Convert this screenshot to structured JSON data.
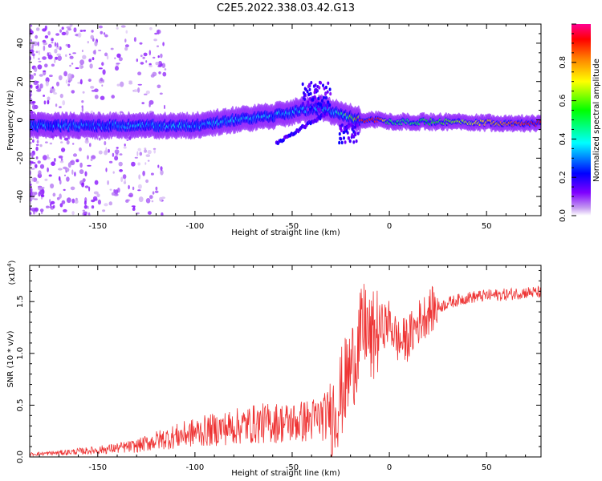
{
  "figure": {
    "title": "C2E5.2022.338.03.42.G13"
  },
  "chart_data": [
    {
      "type": "heatmap",
      "title": "C2E5.2022.338.03.42.G13",
      "xlabel": "Height of straight line (km)",
      "ylabel": "Frequency (Hz)",
      "xlim": [
        -185,
        78
      ],
      "ylim": [
        -50,
        50
      ],
      "xticks": [
        -150,
        -100,
        -50,
        0,
        50
      ],
      "yticks": [
        -40,
        -20,
        0,
        20,
        40
      ],
      "colorbar": {
        "label": "Normalized spectral amplitude",
        "range": [
          0,
          1
        ],
        "ticks": [
          0.0,
          0.2,
          0.4,
          0.6,
          0.8
        ],
        "colormap": [
          "#ffffff",
          "#8000ff",
          "#0000ff",
          "#00ffff",
          "#00ff00",
          "#ffff00",
          "#ff8000",
          "#ff0000",
          "#ff0080"
        ]
      },
      "ridge": {
        "description_points_x": [
          -185,
          -150,
          -120,
          -100,
          -80,
          -60,
          -45,
          -35,
          -25,
          -15,
          -5,
          0,
          10,
          30,
          78
        ],
        "center_freq": [
          -3,
          -3,
          -3,
          -3,
          0,
          2,
          5,
          6,
          3,
          0,
          0,
          -1,
          -1,
          -1,
          -2
        ],
        "peak_amplitude": [
          0.3,
          0.3,
          0.35,
          0.35,
          0.35,
          0.35,
          0.35,
          0.35,
          0.4,
          0.9,
          0.9,
          0.5,
          0.5,
          0.6,
          0.95
        ]
      }
    },
    {
      "type": "line",
      "xlabel": "Height of straight line (km)",
      "ylabel": "SNR (10 * v/v)",
      "y_multiplier": "(x10",
      "y_multiplier_exp": "4",
      "xlim": [
        -185,
        78
      ],
      "ylim": [
        0,
        1.85
      ],
      "xticks": [
        -150,
        -100,
        -50,
        0,
        50
      ],
      "yticks": [
        0.0,
        0.5,
        1.0,
        1.5
      ],
      "series": [
        {
          "color": "#ee3333",
          "x": [
            -185,
            -170,
            -150,
            -130,
            -120,
            -110,
            -100,
            -90,
            -80,
            -70,
            -60,
            -50,
            -40,
            -32,
            -28,
            -25,
            -22,
            -18,
            -15,
            -12,
            -10,
            -5,
            0,
            5,
            10,
            15,
            20,
            25,
            30,
            40,
            50,
            60,
            70,
            78
          ],
          "y": [
            0.02,
            0.03,
            0.05,
            0.08,
            0.12,
            0.15,
            0.18,
            0.2,
            0.22,
            0.24,
            0.25,
            0.25,
            0.27,
            0.3,
            0.45,
            0.6,
            0.75,
            0.95,
            1.15,
            1.3,
            1.1,
            1.25,
            1.3,
            1.1,
            1.15,
            1.3,
            1.4,
            1.45,
            1.5,
            1.55,
            1.57,
            1.58,
            1.6,
            1.6
          ]
        }
      ]
    }
  ]
}
